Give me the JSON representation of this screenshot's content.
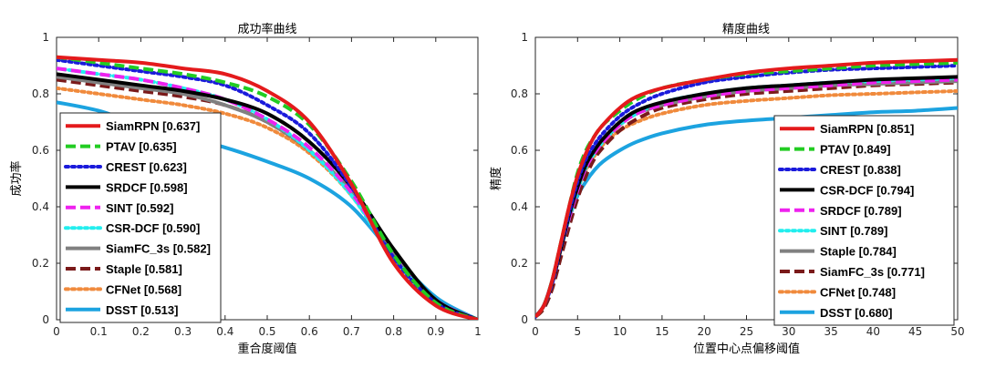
{
  "chart_data": [
    {
      "type": "line",
      "title": "成功率曲线",
      "xlabel": "重合度阈值",
      "ylabel": "成功率",
      "xlim": [
        0,
        1
      ],
      "ylim": [
        0,
        1
      ],
      "xticks": [
        "0",
        "0.1",
        "0.2",
        "0.3",
        "0.4",
        "0.5",
        "0.6",
        "0.7",
        "0.8",
        "0.9",
        "1"
      ],
      "yticks": [
        "0",
        "0.2",
        "0.4",
        "0.6",
        "0.8",
        "1"
      ],
      "legend_position": "bottom-left",
      "series": [
        {
          "name": "SiamRPN [0.637]",
          "color": "#e41a1c",
          "style": "solid",
          "x": [
            0,
            0.1,
            0.2,
            0.3,
            0.4,
            0.5,
            0.6,
            0.7,
            0.8,
            0.9,
            1
          ],
          "y": [
            0.93,
            0.92,
            0.91,
            0.89,
            0.87,
            0.81,
            0.7,
            0.48,
            0.2,
            0.05,
            0.0
          ]
        },
        {
          "name": "PTAV [0.635]",
          "color": "#22cc22",
          "style": "dashed",
          "x": [
            0,
            0.1,
            0.2,
            0.3,
            0.4,
            0.5,
            0.6,
            0.7,
            0.8,
            0.9,
            1
          ],
          "y": [
            0.93,
            0.91,
            0.89,
            0.87,
            0.84,
            0.79,
            0.69,
            0.49,
            0.23,
            0.06,
            0.0
          ]
        },
        {
          "name": "CREST [0.623]",
          "color": "#1a1adb",
          "style": "dotted",
          "x": [
            0,
            0.1,
            0.2,
            0.3,
            0.4,
            0.5,
            0.6,
            0.7,
            0.8,
            0.9,
            1
          ],
          "y": [
            0.92,
            0.9,
            0.88,
            0.86,
            0.83,
            0.76,
            0.66,
            0.47,
            0.22,
            0.06,
            0.0
          ]
        },
        {
          "name": "SRDCF [0.598]",
          "color": "#000000",
          "style": "solid",
          "x": [
            0,
            0.1,
            0.2,
            0.3,
            0.4,
            0.5,
            0.6,
            0.7,
            0.8,
            0.9,
            1
          ],
          "y": [
            0.87,
            0.85,
            0.83,
            0.81,
            0.78,
            0.73,
            0.63,
            0.47,
            0.25,
            0.07,
            0.0
          ]
        },
        {
          "name": "SINT [0.592]",
          "color": "#ee22ee",
          "style": "dashed",
          "x": [
            0,
            0.1,
            0.2,
            0.3,
            0.4,
            0.5,
            0.6,
            0.7,
            0.8,
            0.9,
            1
          ],
          "y": [
            0.89,
            0.87,
            0.85,
            0.82,
            0.78,
            0.71,
            0.61,
            0.45,
            0.23,
            0.07,
            0.0
          ]
        },
        {
          "name": "CSR-DCF [0.590]",
          "color": "#22eeee",
          "style": "dotted",
          "x": [
            0,
            0.1,
            0.2,
            0.3,
            0.4,
            0.5,
            0.6,
            0.7,
            0.8,
            0.9,
            1
          ],
          "y": [
            0.89,
            0.87,
            0.85,
            0.82,
            0.78,
            0.71,
            0.6,
            0.44,
            0.22,
            0.06,
            0.0
          ]
        },
        {
          "name": "SiamFC_3s [0.582]",
          "color": "#808080",
          "style": "solid",
          "x": [
            0,
            0.1,
            0.2,
            0.3,
            0.4,
            0.5,
            0.6,
            0.7,
            0.8,
            0.9,
            1
          ],
          "y": [
            0.86,
            0.84,
            0.82,
            0.8,
            0.76,
            0.7,
            0.6,
            0.45,
            0.24,
            0.07,
            0.0
          ]
        },
        {
          "name": "Staple [0.581]",
          "color": "#7a1a1a",
          "style": "dashed",
          "x": [
            0,
            0.1,
            0.2,
            0.3,
            0.4,
            0.5,
            0.6,
            0.7,
            0.8,
            0.9,
            1
          ],
          "y": [
            0.85,
            0.83,
            0.81,
            0.79,
            0.76,
            0.7,
            0.6,
            0.45,
            0.23,
            0.06,
            0.0
          ]
        },
        {
          "name": "CFNet [0.568]",
          "color": "#f08a3c",
          "style": "dotted",
          "x": [
            0,
            0.1,
            0.2,
            0.3,
            0.4,
            0.5,
            0.6,
            0.7,
            0.8,
            0.9,
            1
          ],
          "y": [
            0.82,
            0.8,
            0.78,
            0.76,
            0.73,
            0.68,
            0.59,
            0.44,
            0.23,
            0.06,
            0.0
          ]
        },
        {
          "name": "DSST [0.513]",
          "color": "#1ca3e0",
          "style": "solid",
          "x": [
            0,
            0.1,
            0.2,
            0.3,
            0.4,
            0.5,
            0.6,
            0.7,
            0.8,
            0.9,
            1
          ],
          "y": [
            0.77,
            0.74,
            0.69,
            0.65,
            0.61,
            0.56,
            0.5,
            0.4,
            0.23,
            0.08,
            0.0
          ]
        }
      ]
    },
    {
      "type": "line",
      "title": "精度曲线",
      "xlabel": "位置中心点偏移阈值",
      "ylabel": "精度",
      "xlim": [
        0,
        50
      ],
      "ylim": [
        0,
        1
      ],
      "xticks": [
        "0",
        "5",
        "10",
        "15",
        "20",
        "25",
        "30",
        "35",
        "40",
        "45",
        "50"
      ],
      "yticks": [
        "0",
        "0.2",
        "0.4",
        "0.6",
        "0.8",
        "1"
      ],
      "legend_position": "bottom-right",
      "series": [
        {
          "name": "SiamRPN [0.851]",
          "color": "#e41a1c",
          "style": "solid",
          "x": [
            0,
            1,
            2,
            3,
            4,
            5,
            6,
            7,
            8,
            10,
            12,
            15,
            20,
            25,
            30,
            35,
            40,
            45,
            50
          ],
          "y": [
            0.01,
            0.05,
            0.14,
            0.27,
            0.4,
            0.51,
            0.59,
            0.65,
            0.69,
            0.75,
            0.79,
            0.82,
            0.85,
            0.875,
            0.89,
            0.9,
            0.91,
            0.915,
            0.92
          ]
        },
        {
          "name": "PTAV [0.849]",
          "color": "#22cc22",
          "style": "dashed",
          "x": [
            0,
            1,
            2,
            3,
            4,
            5,
            6,
            7,
            8,
            10,
            12,
            15,
            20,
            25,
            30,
            35,
            40,
            45,
            50
          ],
          "y": [
            0.01,
            0.05,
            0.14,
            0.27,
            0.4,
            0.52,
            0.6,
            0.65,
            0.69,
            0.74,
            0.78,
            0.82,
            0.85,
            0.87,
            0.88,
            0.89,
            0.9,
            0.905,
            0.91
          ]
        },
        {
          "name": "CREST [0.838]",
          "color": "#1a1adb",
          "style": "dotted",
          "x": [
            0,
            1,
            2,
            3,
            4,
            5,
            6,
            7,
            8,
            10,
            12,
            15,
            20,
            25,
            30,
            35,
            40,
            45,
            50
          ],
          "y": [
            0.01,
            0.05,
            0.13,
            0.26,
            0.38,
            0.49,
            0.57,
            0.62,
            0.66,
            0.72,
            0.76,
            0.8,
            0.84,
            0.86,
            0.875,
            0.885,
            0.89,
            0.895,
            0.9
          ]
        },
        {
          "name": "CSR-DCF [0.794]",
          "color": "#000000",
          "style": "solid",
          "x": [
            0,
            1,
            2,
            3,
            4,
            5,
            6,
            7,
            8,
            10,
            12,
            15,
            20,
            25,
            30,
            35,
            40,
            45,
            50
          ],
          "y": [
            0.01,
            0.05,
            0.13,
            0.25,
            0.37,
            0.47,
            0.55,
            0.6,
            0.64,
            0.7,
            0.74,
            0.77,
            0.8,
            0.82,
            0.83,
            0.84,
            0.85,
            0.855,
            0.86
          ]
        },
        {
          "name": "SRDCF [0.789]",
          "color": "#ee22ee",
          "style": "dashed",
          "x": [
            0,
            1,
            2,
            3,
            4,
            5,
            6,
            7,
            8,
            10,
            12,
            15,
            20,
            25,
            30,
            35,
            40,
            45,
            50
          ],
          "y": [
            0.01,
            0.05,
            0.13,
            0.25,
            0.36,
            0.46,
            0.54,
            0.59,
            0.63,
            0.69,
            0.73,
            0.76,
            0.79,
            0.81,
            0.82,
            0.83,
            0.84,
            0.845,
            0.85
          ]
        },
        {
          "name": "SINT [0.789]",
          "color": "#22eeee",
          "style": "dotted",
          "x": [
            0,
            1,
            2,
            3,
            4,
            5,
            6,
            7,
            8,
            10,
            12,
            15,
            20,
            25,
            30,
            35,
            40,
            45,
            50
          ],
          "y": [
            0.01,
            0.05,
            0.13,
            0.25,
            0.36,
            0.46,
            0.54,
            0.59,
            0.63,
            0.69,
            0.73,
            0.77,
            0.8,
            0.82,
            0.83,
            0.84,
            0.845,
            0.85,
            0.855
          ]
        },
        {
          "name": "Staple [0.784]",
          "color": "#808080",
          "style": "solid",
          "x": [
            0,
            1,
            2,
            3,
            4,
            5,
            6,
            7,
            8,
            10,
            12,
            15,
            20,
            25,
            30,
            35,
            40,
            45,
            50
          ],
          "y": [
            0.01,
            0.05,
            0.13,
            0.25,
            0.36,
            0.46,
            0.54,
            0.59,
            0.63,
            0.69,
            0.73,
            0.76,
            0.79,
            0.81,
            0.82,
            0.83,
            0.835,
            0.84,
            0.845
          ]
        },
        {
          "name": "SiamFC_3s [0.771]",
          "color": "#7a1a1a",
          "style": "dashed",
          "x": [
            0,
            1,
            2,
            3,
            4,
            5,
            6,
            7,
            8,
            10,
            12,
            15,
            20,
            25,
            30,
            35,
            40,
            45,
            50
          ],
          "y": [
            0.01,
            0.04,
            0.11,
            0.22,
            0.33,
            0.43,
            0.51,
            0.57,
            0.61,
            0.67,
            0.71,
            0.75,
            0.78,
            0.8,
            0.81,
            0.82,
            0.83,
            0.835,
            0.84
          ]
        },
        {
          "name": "CFNet [0.748]",
          "color": "#f08a3c",
          "style": "dotted",
          "x": [
            0,
            1,
            2,
            3,
            4,
            5,
            6,
            7,
            8,
            10,
            12,
            15,
            20,
            25,
            30,
            35,
            40,
            45,
            50
          ],
          "y": [
            0.01,
            0.05,
            0.13,
            0.25,
            0.36,
            0.46,
            0.53,
            0.58,
            0.62,
            0.67,
            0.7,
            0.73,
            0.76,
            0.775,
            0.785,
            0.795,
            0.8,
            0.805,
            0.81
          ]
        },
        {
          "name": "DSST [0.680]",
          "color": "#1ca3e0",
          "style": "solid",
          "x": [
            0,
            1,
            2,
            3,
            4,
            5,
            6,
            7,
            8,
            10,
            12,
            15,
            20,
            25,
            30,
            35,
            40,
            45,
            50
          ],
          "y": [
            0.01,
            0.05,
            0.14,
            0.26,
            0.36,
            0.44,
            0.49,
            0.53,
            0.56,
            0.6,
            0.63,
            0.66,
            0.69,
            0.705,
            0.715,
            0.725,
            0.735,
            0.74,
            0.75
          ]
        }
      ]
    }
  ]
}
